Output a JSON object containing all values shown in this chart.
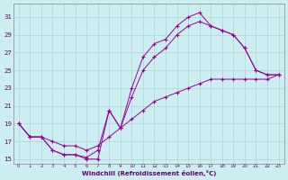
{
  "xlabel": "Windchill (Refroidissement éolien,°C)",
  "background_color": "#cceef0",
  "grid_color": "#aad4d8",
  "line_color": "#990099",
  "hours": [
    0,
    1,
    2,
    3,
    4,
    5,
    6,
    7,
    8,
    9,
    10,
    11,
    12,
    13,
    14,
    15,
    16,
    17,
    18,
    19,
    20,
    21,
    22,
    23
  ],
  "line_straight": [
    19.0,
    17.5,
    17.5,
    17.0,
    16.5,
    16.5,
    16.0,
    16.5,
    17.5,
    18.5,
    19.5,
    20.5,
    21.5,
    22.0,
    22.5,
    23.0,
    23.5,
    24.0,
    24.0,
    24.0,
    24.0,
    24.0,
    24.0,
    24.5
  ],
  "line_mid": [
    19.0,
    17.5,
    17.5,
    16.0,
    15.5,
    15.5,
    15.2,
    16.0,
    20.5,
    18.5,
    22.0,
    25.0,
    26.5,
    27.5,
    29.0,
    30.0,
    30.5,
    30.0,
    29.5,
    29.0,
    27.5,
    25.0,
    24.5,
    24.5
  ],
  "line_top": [
    19.0,
    17.5,
    17.5,
    16.0,
    15.5,
    15.5,
    15.0,
    15.0,
    20.5,
    18.5,
    23.0,
    26.5,
    28.0,
    28.5,
    30.0,
    31.0,
    31.5,
    30.0,
    29.5,
    29.0,
    27.5,
    25.0,
    24.5,
    24.5
  ],
  "ylim": [
    14.5,
    32.5
  ],
  "xlim": [
    -0.5,
    23.5
  ],
  "yticks": [
    15,
    17,
    19,
    21,
    23,
    25,
    27,
    29,
    31
  ]
}
